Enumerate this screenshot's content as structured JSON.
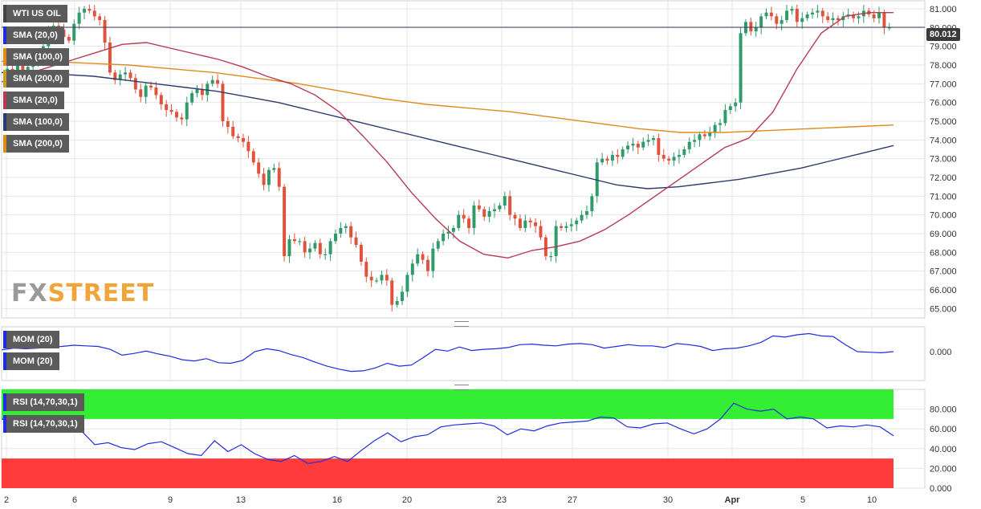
{
  "chart_data": [
    {
      "type": "candlestick",
      "instrument": "WTI US OIL",
      "current_price": "80.012",
      "y_ticks": [
        "81.000",
        "80.000",
        "79.000",
        "78.000",
        "77.000",
        "76.000",
        "75.000",
        "74.000",
        "73.000",
        "72.000",
        "71.000",
        "70.000",
        "69.000",
        "68.000",
        "67.000",
        "66.000",
        "65.000"
      ],
      "x_ticks": [
        "2",
        "6",
        "9",
        "13",
        "16",
        "20",
        "23",
        "27",
        "30",
        "Apr",
        "5",
        "10"
      ],
      "indicators": [
        "SMA (20,0)",
        "SMA (100,0)",
        "SMA (200,0)",
        "SMA (20,0)",
        "SMA (100,0)",
        "SMA (200,0)"
      ],
      "closes": [
        77.8,
        77.6,
        78.0,
        77.7,
        77.9,
        78.2,
        78.3,
        79.0,
        79.8,
        80.1,
        79.9,
        79.5,
        79.3,
        80.2,
        80.8,
        81.0,
        80.9,
        80.6,
        80.4,
        79.2,
        77.6,
        77.2,
        77.5,
        77.6,
        77.3,
        76.7,
        76.3,
        76.9,
        76.8,
        76.4,
        75.9,
        75.6,
        75.5,
        75.2,
        75.1,
        76.0,
        76.5,
        76.7,
        76.4,
        77.0,
        77.2,
        77.0,
        75.0,
        74.7,
        74.2,
        74.1,
        73.9,
        73.4,
        72.8,
        72.2,
        71.6,
        72.4,
        72.5,
        71.5,
        67.8,
        68.7,
        68.6,
        68.6,
        68.0,
        68.2,
        68.5,
        67.9,
        67.9,
        68.6,
        69.0,
        69.3,
        69.4,
        68.8,
        68.4,
        67.5,
        66.7,
        66.5,
        66.5,
        66.8,
        66.5,
        65.2,
        65.4,
        65.9,
        66.8,
        67.4,
        67.9,
        67.6,
        67.0,
        68.2,
        68.6,
        69.0,
        69.1,
        69.3,
        70.0,
        69.8,
        69.3,
        70.5,
        70.3,
        69.9,
        70.2,
        70.3,
        70.5,
        71.0,
        70.0,
        69.8,
        69.3,
        69.7,
        69.6,
        69.4,
        68.8,
        67.8,
        67.8,
        69.4,
        69.3,
        69.4,
        69.5,
        69.7,
        70.0,
        70.2,
        71.0,
        72.8,
        73.0,
        72.9,
        73.2,
        73.1,
        73.5,
        73.7,
        73.8,
        73.6,
        73.9,
        74.0,
        74.1,
        73.2,
        73.0,
        72.9,
        73.1,
        73.2,
        73.5,
        73.9,
        74.0,
        74.3,
        74.2,
        74.4,
        74.8,
        74.9,
        75.6,
        75.8,
        76.0,
        79.7,
        80.3,
        79.8,
        80.0,
        80.6,
        80.8,
        80.6,
        80.2,
        80.4,
        80.9,
        81.0,
        80.3,
        80.5,
        80.7,
        80.8,
        80.9,
        80.6,
        80.4,
        80.5,
        80.4,
        80.6,
        80.7,
        80.5,
        80.6,
        80.9,
        80.7,
        80.5,
        80.8,
        80.0,
        80.012
      ],
      "sma_20": [
        77.1,
        77.5,
        77.9,
        78.3,
        78.7,
        79.1,
        79.2,
        78.9,
        78.6,
        78.3,
        77.9,
        77.4,
        77.0,
        76.4,
        75.5,
        74.2,
        72.8,
        71.2,
        69.8,
        68.6,
        67.9,
        67.7,
        68.1,
        68.3,
        68.6,
        69.2,
        70.0,
        70.9,
        71.8,
        72.7,
        73.6,
        74.1,
        75.5,
        77.8,
        79.7,
        80.6,
        80.8,
        80.8
      ],
      "sma_100": [
        77.6,
        77.6,
        77.5,
        77.4,
        77.2,
        77.0,
        76.8,
        76.6,
        76.3,
        76.0,
        75.6,
        75.2,
        74.8,
        74.4,
        74.0,
        73.6,
        73.2,
        72.8,
        72.4,
        72.0,
        71.6,
        71.4,
        71.5,
        71.7,
        71.9,
        72.2,
        72.5,
        72.9,
        73.3,
        73.7
      ],
      "sma_200": [
        78.2,
        78.2,
        78.1,
        78.0,
        77.8,
        77.6,
        77.3,
        77.0,
        76.6,
        76.2,
        75.9,
        75.7,
        75.5,
        75.2,
        74.9,
        74.6,
        74.4,
        74.4,
        74.5,
        74.6,
        74.7,
        74.8
      ],
      "momentum": [
        0.3,
        0.6,
        0.5,
        0.6,
        0.8,
        0.9,
        1.1,
        1.0,
        0.9,
        0.4,
        -0.6,
        -0.3,
        0.1,
        -0.4,
        -0.8,
        -1.4,
        -1.6,
        -1.2,
        -1.9,
        -2.0,
        -1.5,
        0.0,
        0.5,
        0.2,
        -0.5,
        -1.0,
        -1.8,
        -2.5,
        -3.0,
        -3.4,
        -3.3,
        -2.8,
        -2.0,
        -2.5,
        -2.3,
        -1.0,
        0.4,
        0.1,
        0.8,
        0.2,
        0.4,
        0.5,
        0.7,
        1.2,
        1.3,
        1.1,
        1.0,
        1.3,
        1.4,
        1.2,
        0.6,
        0.9,
        1.2,
        1.0,
        1.0,
        0.7,
        1.4,
        1.2,
        0.9,
        0.2,
        0.5,
        0.6,
        1.0,
        1.6,
        2.7,
        2.5,
        2.9,
        3.1,
        2.7,
        2.6,
        1.2,
        0.0,
        -0.1,
        -0.2,
        0.0
      ],
      "rsi": [
        70,
        67,
        65,
        61,
        66,
        68,
        58,
        44,
        46,
        41,
        39,
        45,
        47,
        41,
        35,
        33,
        48,
        37,
        44,
        35,
        29,
        27,
        33,
        25,
        27,
        32,
        27,
        38,
        48,
        56,
        47,
        52,
        54,
        62,
        64,
        65,
        66,
        63,
        54,
        60,
        58,
        63,
        66,
        67,
        68,
        72,
        71,
        62,
        61,
        65,
        66,
        60,
        55,
        60,
        70,
        86,
        80,
        78,
        80,
        70,
        72,
        70,
        61,
        63,
        62,
        64,
        62,
        53
      ],
      "rsi_overbought": 70,
      "rsi_oversold": 30,
      "mom_ticks": [
        "0.000"
      ],
      "rsi_ticks": [
        "80.000",
        "60.000",
        "40.000",
        "20.000",
        "0.000"
      ],
      "pane_labels": {
        "mom": [
          "MOM (20)",
          "MOM (20)"
        ],
        "rsi": [
          "RSI (14,70,30,1)",
          "RSI (14,70,30,1)"
        ]
      },
      "logo": {
        "fx": "FX",
        "street": "STREET"
      },
      "colors": {
        "up": "#2f9a6a",
        "down": "#e0523b",
        "sma_20": "#b73a52",
        "sma_100": "#2d3a6e",
        "sma_200": "#e08a1a",
        "indicator": "#1f2be0",
        "overbought": "#33ee33",
        "oversold": "#ff3b3b",
        "grid": "#e6e6e6"
      }
    }
  ]
}
